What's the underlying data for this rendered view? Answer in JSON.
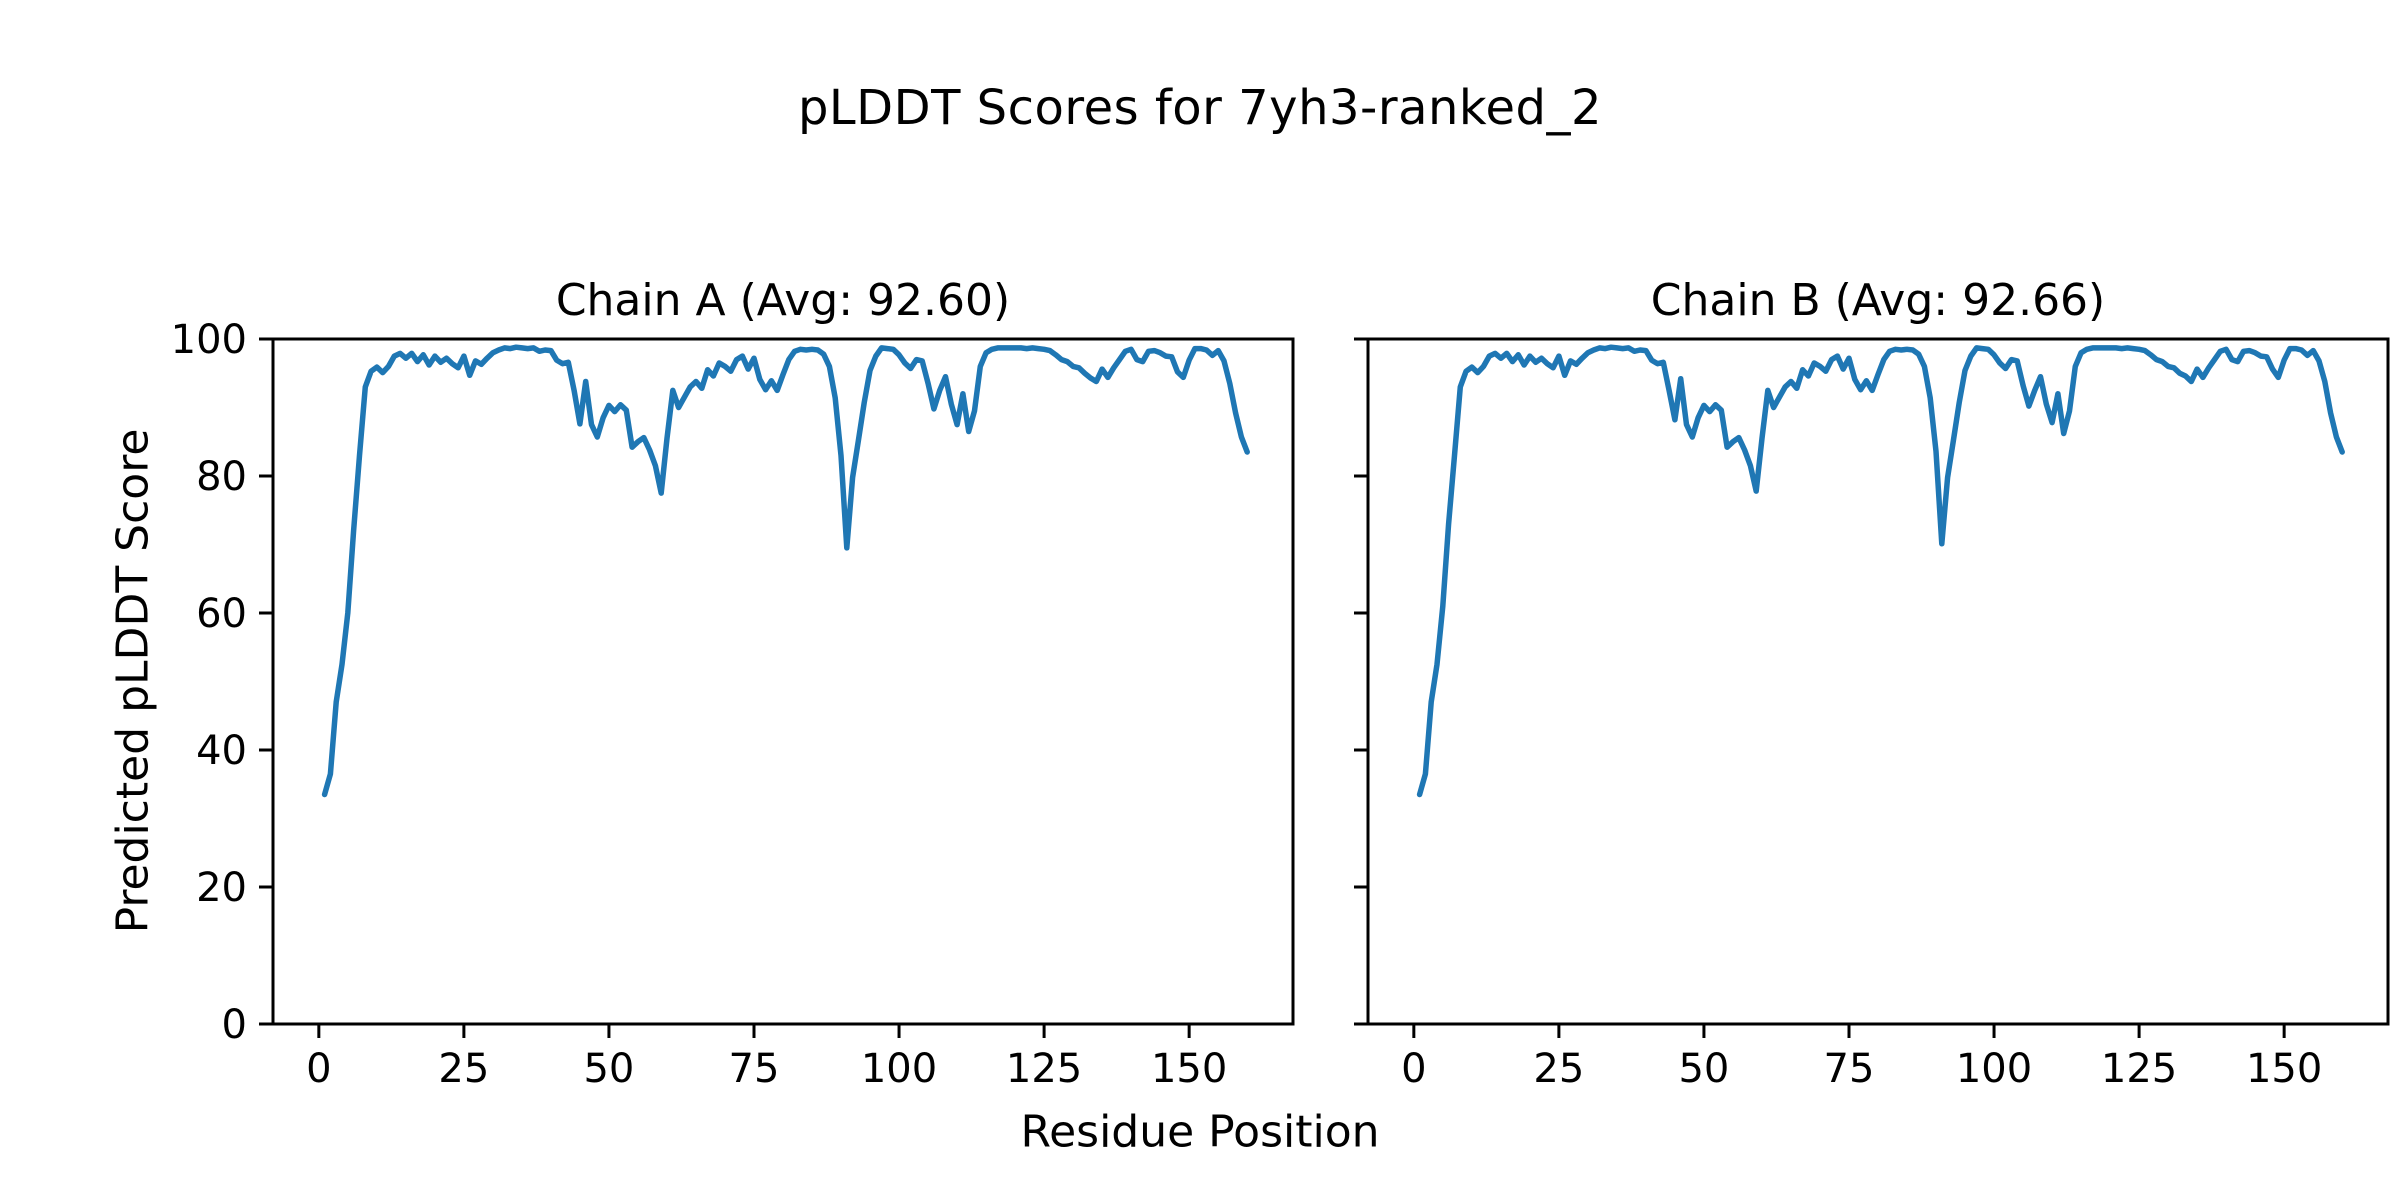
{
  "figure": {
    "title": "pLDDT Scores for 7yh3-ranked_2",
    "xlabel": "Residue Position",
    "ylabel": "Predicted pLDDT Score",
    "background_color": "#ffffff",
    "text_color": "#000000",
    "axis_color": "#000000"
  },
  "chart_data": [
    {
      "type": "line",
      "title": "Chain A (Avg: 92.60)",
      "chain": "A",
      "avg_plddt": 92.6,
      "line_color": "#1f77b4",
      "line_width": 5.5,
      "xlim": [
        -7.9,
        167.9
      ],
      "ylim": [
        0,
        100
      ],
      "xticks": [
        0,
        25,
        50,
        75,
        100,
        125,
        150
      ],
      "yticks": [
        0,
        20,
        40,
        60,
        80,
        100
      ],
      "ytick_labels_visible": true,
      "grid": false,
      "legend": "none",
      "series": [
        {
          "name": "pLDDT",
          "x_start": 1,
          "x_step": 1,
          "y": [
            33.5,
            36.5,
            47.0,
            52.5,
            60.0,
            72.0,
            83.0,
            93.0,
            95.3,
            95.9,
            95.1,
            96.0,
            97.5,
            97.9,
            97.2,
            97.9,
            96.7,
            97.7,
            96.2,
            97.5,
            96.6,
            97.2,
            96.4,
            95.8,
            97.5,
            94.7,
            96.8,
            96.3,
            97.2,
            98.0,
            98.4,
            98.7,
            98.6,
            98.8,
            98.7,
            98.6,
            98.7,
            98.2,
            98.4,
            98.3,
            96.9,
            96.4,
            96.6,
            92.5,
            87.6,
            93.8,
            87.5,
            85.7,
            88.5,
            90.3,
            89.4,
            90.4,
            89.6,
            84.2,
            85.0,
            85.6,
            83.8,
            81.5,
            77.5,
            85.5,
            92.5,
            90.0,
            91.5,
            93.0,
            93.8,
            92.8,
            95.5,
            94.6,
            96.5,
            96.0,
            95.3,
            97.0,
            97.5,
            95.6,
            97.2,
            94.1,
            92.6,
            93.9,
            92.5,
            94.8,
            97.0,
            98.2,
            98.5,
            98.4,
            98.5,
            98.4,
            97.8,
            96.0,
            91.4,
            83.0,
            69.5,
            79.8,
            85.2,
            90.7,
            95.4,
            97.5,
            98.7,
            98.6,
            98.5,
            97.7,
            96.5,
            95.7,
            97.0,
            96.8,
            93.5,
            89.8,
            92.5,
            94.5,
            90.5,
            87.5,
            92.0,
            86.5,
            89.5,
            96.0,
            98.0,
            98.5,
            98.7,
            98.7,
            98.7,
            98.7,
            98.7,
            98.6,
            98.7,
            98.6,
            98.5,
            98.3,
            97.7,
            97.0,
            96.7,
            96.0,
            95.8,
            95.0,
            94.3,
            93.8,
            95.6,
            94.4,
            95.8,
            97.0,
            98.2,
            98.5,
            97.0,
            96.7,
            98.2,
            98.3,
            98.0,
            97.5,
            97.4,
            95.2,
            94.4,
            96.9,
            98.6,
            98.6,
            98.4,
            97.6,
            98.3,
            96.8,
            93.5,
            89.2,
            85.7,
            83.5
          ]
        }
      ]
    },
    {
      "type": "line",
      "title": "Chain B (Avg: 92.66)",
      "chain": "B",
      "avg_plddt": 92.66,
      "line_color": "#1f77b4",
      "line_width": 5.5,
      "xlim": [
        -7.9,
        167.9
      ],
      "ylim": [
        0,
        100
      ],
      "xticks": [
        0,
        25,
        50,
        75,
        100,
        125,
        150
      ],
      "yticks": [
        0,
        20,
        40,
        60,
        80,
        100
      ],
      "ytick_labels_visible": false,
      "grid": false,
      "legend": "none",
      "series": [
        {
          "name": "pLDDT",
          "x_start": 1,
          "x_step": 1,
          "y": [
            33.5,
            36.5,
            47.0,
            52.5,
            61.0,
            73.0,
            83.0,
            93.0,
            95.3,
            95.9,
            95.1,
            96.0,
            97.5,
            97.9,
            97.2,
            97.9,
            96.7,
            97.7,
            96.2,
            97.5,
            96.6,
            97.2,
            96.4,
            95.8,
            97.5,
            94.7,
            96.8,
            96.3,
            97.2,
            98.0,
            98.4,
            98.7,
            98.6,
            98.8,
            98.7,
            98.6,
            98.7,
            98.2,
            98.4,
            98.3,
            96.9,
            96.4,
            96.6,
            92.5,
            88.2,
            94.2,
            87.5,
            85.7,
            88.5,
            90.3,
            89.4,
            90.4,
            89.6,
            84.2,
            85.0,
            85.6,
            83.8,
            81.5,
            77.8,
            85.5,
            92.5,
            90.0,
            91.5,
            93.0,
            93.8,
            92.8,
            95.5,
            94.6,
            96.5,
            96.0,
            95.3,
            97.0,
            97.5,
            95.6,
            97.2,
            94.1,
            92.6,
            93.9,
            92.5,
            94.8,
            97.0,
            98.2,
            98.5,
            98.4,
            98.5,
            98.4,
            97.8,
            96.0,
            91.4,
            83.6,
            70.1,
            79.8,
            85.2,
            90.7,
            95.4,
            97.5,
            98.7,
            98.6,
            98.5,
            97.7,
            96.5,
            95.7,
            97.0,
            96.8,
            93.2,
            90.2,
            92.5,
            94.5,
            90.5,
            87.8,
            92.0,
            86.2,
            89.5,
            96.0,
            98.0,
            98.5,
            98.7,
            98.7,
            98.7,
            98.7,
            98.7,
            98.6,
            98.7,
            98.6,
            98.5,
            98.3,
            97.7,
            97.0,
            96.7,
            96.0,
            95.8,
            95.0,
            94.6,
            93.8,
            95.6,
            94.4,
            95.8,
            97.0,
            98.2,
            98.5,
            97.0,
            96.7,
            98.2,
            98.3,
            98.0,
            97.5,
            97.4,
            95.6,
            94.4,
            96.9,
            98.6,
            98.6,
            98.4,
            97.6,
            98.3,
            96.8,
            93.8,
            89.2,
            85.7,
            83.5
          ]
        }
      ]
    }
  ]
}
